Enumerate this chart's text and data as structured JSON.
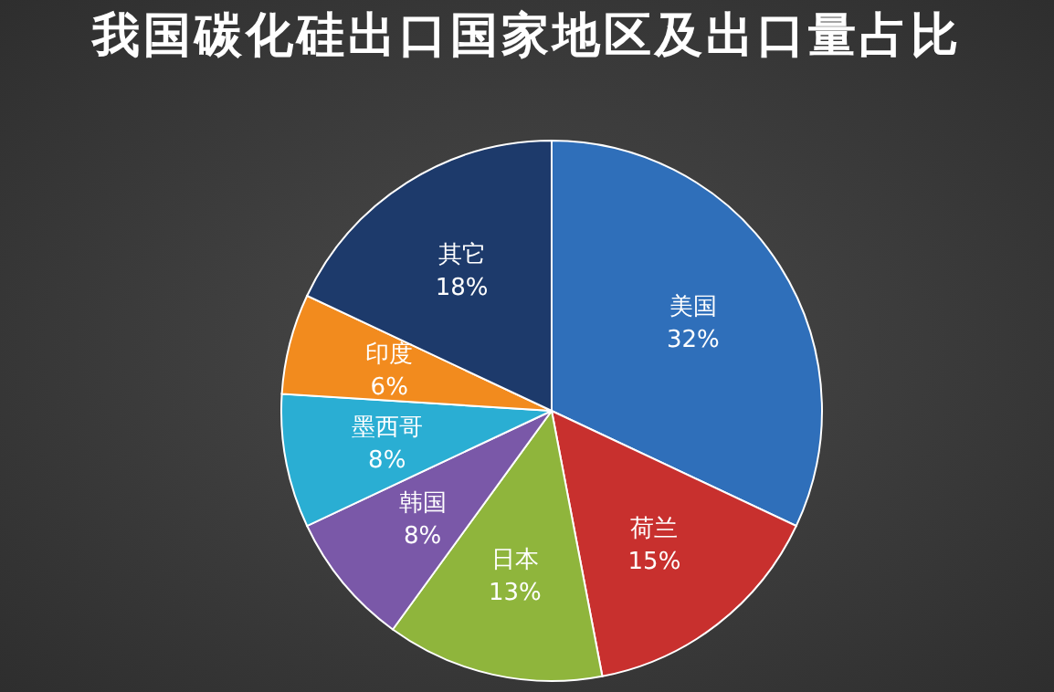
{
  "chart_data": {
    "type": "pie",
    "title": "我国碳化硅出口国家地区及出口量占比",
    "categories": [
      "美国",
      "荷兰",
      "日本",
      "韩国",
      "墨西哥",
      "印度",
      "其它"
    ],
    "values": [
      32,
      15,
      13,
      8,
      8,
      6,
      18
    ],
    "value_labels": [
      "32%",
      "15%",
      "13%",
      "8%",
      "8%",
      "6%",
      "18%"
    ],
    "colors": [
      "#2f6fba",
      "#c8302e",
      "#8fb53c",
      "#7a58a8",
      "#2aaed3",
      "#f28b1e",
      "#1d3a6b"
    ],
    "legend": false
  }
}
